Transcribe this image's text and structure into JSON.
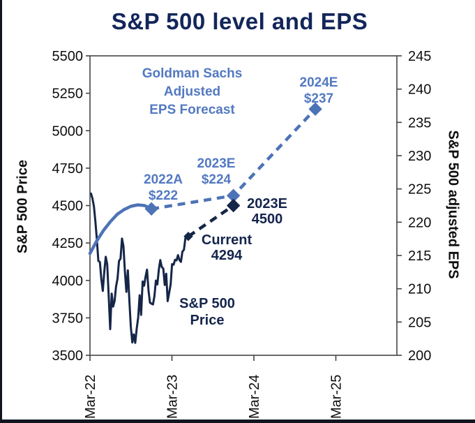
{
  "page": {
    "title": "S&P 500 level and EPS"
  },
  "chart_data": {
    "type": "line",
    "title": "S&P 500 level and EPS",
    "x_axis": {
      "ticks": [
        {
          "label": "Mar-22",
          "m": 0
        },
        {
          "label": "Mar-23",
          "m": 12
        },
        {
          "label": "Mar-24",
          "m": 24
        },
        {
          "label": "Mar-25",
          "m": 36
        }
      ],
      "domain_months": [
        0,
        45
      ]
    },
    "left_axis": {
      "label": "S&P 500 Price",
      "min": 3500,
      "max": 5500,
      "ticks": [
        5500,
        5250,
        5000,
        4750,
        4500,
        4250,
        4000,
        3750,
        3500
      ]
    },
    "right_axis": {
      "label": "S&P 500 adjusted EPS",
      "min": 200,
      "max": 245,
      "ticks": [
        245,
        240,
        235,
        230,
        225,
        220,
        215,
        210,
        205,
        200
      ]
    },
    "colors": {
      "navy": "#152647",
      "blue_line": "#4d73b7",
      "blue_text": "#5379c1",
      "title": "#13265a",
      "frame": "#5a5a5a"
    },
    "series": [
      {
        "id": "sp500-price",
        "name": "S&P 500 Price",
        "axis": "left",
        "style": "solid",
        "color": "#152647",
        "width": 3,
        "x_start": 0.15,
        "x_end": 14.4,
        "frequency": "weekly",
        "values": [
          4580,
          4546,
          4493,
          4392,
          4271,
          4131,
          4123,
          4008,
          3930,
          4058,
          4158,
          4108,
          3900,
          3675,
          3912,
          3825,
          3863,
          3960,
          4012,
          4130,
          4145,
          4280,
          4228,
          4058,
          3924,
          4067,
          3873,
          3693,
          3586,
          3640,
          3583,
          3678,
          3752,
          3901,
          3770,
          3993,
          3965,
          4026,
          4072,
          3934,
          3852,
          3845,
          3840,
          3895,
          3999,
          3973,
          4071,
          4136,
          4090,
          4079,
          3970,
          4045,
          3862,
          3917,
          3971,
          4109,
          4105,
          4138,
          4134,
          4169,
          4136,
          4124,
          4192,
          4205,
          4282,
          4299,
          4294
        ]
      },
      {
        "id": "eps-actual",
        "name": "Goldman Sachs Adjusted EPS (actual)",
        "axis": "right",
        "style": "solid",
        "color": "#4d73b7",
        "width": 4.5,
        "points": [
          [
            0,
            215.3
          ],
          [
            1,
            217.2
          ],
          [
            2,
            218.8
          ],
          [
            3,
            220.1
          ],
          [
            4,
            221.2
          ],
          [
            5,
            221.9
          ],
          [
            6,
            222.4
          ],
          [
            7,
            222.6
          ],
          [
            8,
            222.5
          ],
          [
            9,
            222
          ]
        ]
      },
      {
        "id": "eps-forecast",
        "name": "Goldman Sachs Adjusted EPS Forecast",
        "axis": "right",
        "style": "dashed",
        "color": "#4d73b7",
        "width": 4.5,
        "markers": true,
        "marker_sizes": [
          9,
          9,
          9
        ],
        "points": [
          [
            9,
            222
          ],
          [
            21,
            224
          ],
          [
            33,
            237
          ]
        ]
      },
      {
        "id": "price-forecast",
        "name": "S&P 500 Price Forecast",
        "axis": "left",
        "style": "dashed",
        "color": "#152647",
        "width": 4.5,
        "markers": true,
        "marker_sizes": [
          6,
          9
        ],
        "points": [
          [
            14.4,
            4294
          ],
          [
            21,
            4500
          ]
        ]
      }
    ],
    "key_points": {
      "eps_2022A": 222,
      "eps_2023E": 224,
      "eps_2024E": 237,
      "price_current": 4294,
      "price_2023E": 4500
    },
    "labels": {
      "goldman": {
        "l1": "Goldman Sachs",
        "l2": "Adjusted",
        "l3": "EPS Forecast"
      },
      "a2022": {
        "l1": "2022A",
        "l2": "$222"
      },
      "e2023eps": {
        "l1": "2023E",
        "l2": "$224"
      },
      "e2024": {
        "l1": "2024E",
        "l2": "$237"
      },
      "e2023price": {
        "l1": "2023E",
        "l2": "4500"
      },
      "current": {
        "l1": "Current",
        "l2": "4294"
      },
      "price_line": {
        "l1": "S&P 500",
        "l2": "Price"
      }
    }
  }
}
